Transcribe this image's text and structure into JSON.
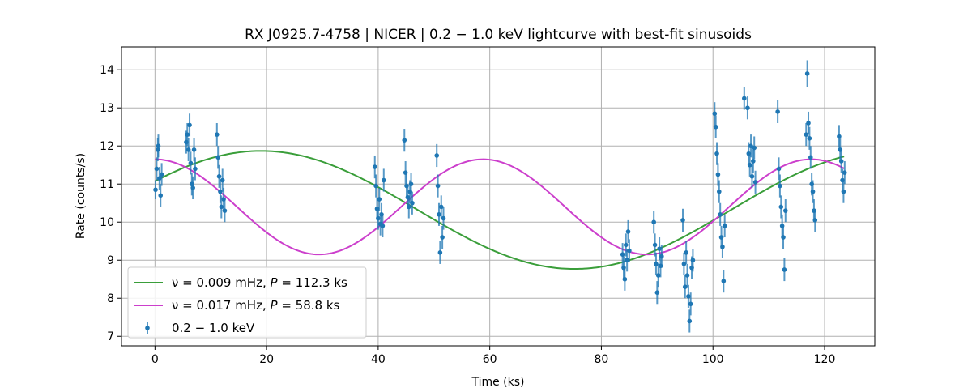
{
  "chart_data": {
    "type": "scatter",
    "title": "RX J0925.7-4758 | NICER | 0.2 − 1.0 keV lightcurve with best-fit sinusoids",
    "xlabel": "Time (ks)",
    "ylabel": "Rate (counts/s)",
    "xlim": [
      -6,
      129
    ],
    "ylim": [
      6.75,
      14.6
    ],
    "xticks": [
      0,
      20,
      40,
      60,
      80,
      100,
      120
    ],
    "yticks": [
      7,
      8,
      9,
      10,
      11,
      12,
      13,
      14
    ],
    "grid": true,
    "legend_position": "lower-left",
    "legend": [
      {
        "label_prefix": "ν = 0.009 mHz, ",
        "label_italic": "P",
        "label_suffix": " = 112.3 ks",
        "color": "#3a9e3a",
        "kind": "line"
      },
      {
        "label_prefix": "ν = 0.017 mHz, ",
        "label_italic": "P",
        "label_suffix": " = 58.8 ks",
        "color": "#cc3fcc",
        "kind": "line"
      },
      {
        "label_prefix": "0.2 − 1.0 keV",
        "label_italic": "",
        "label_suffix": "",
        "color": "#1f77b4",
        "kind": "errorbar"
      }
    ],
    "models": [
      {
        "name": "ν = 0.009 mHz, P = 112.3 ks",
        "color": "#3a9e3a",
        "mean": 10.32,
        "amplitude": 1.55,
        "period": 112.3,
        "peak_time": 19.0,
        "x_range": [
          0,
          123.5
        ]
      },
      {
        "name": "ν = 0.017 mHz, P = 58.8 ks",
        "color": "#cc3fcc",
        "mean": 10.4,
        "amplitude": 1.25,
        "period": 58.8,
        "peak_time": 58.8,
        "x_range": [
          0,
          123.5
        ]
      }
    ],
    "series": [
      {
        "name": "0.2 − 1.0 keV",
        "color": "#1f77b4",
        "points": [
          [
            0.1,
            10.85,
            0.25
          ],
          [
            0.3,
            11.4,
            0.3
          ],
          [
            0.5,
            11.9,
            0.3
          ],
          [
            0.6,
            12.0,
            0.3
          ],
          [
            0.8,
            11.15,
            0.3
          ],
          [
            1.0,
            10.7,
            0.3
          ],
          [
            1.2,
            11.25,
            0.3
          ],
          [
            5.6,
            12.1,
            0.3
          ],
          [
            5.8,
            12.3,
            0.3
          ],
          [
            6.0,
            11.9,
            0.3
          ],
          [
            6.2,
            12.55,
            0.3
          ],
          [
            6.4,
            11.55,
            0.3
          ],
          [
            6.6,
            11.0,
            0.3
          ],
          [
            6.8,
            10.9,
            0.3
          ],
          [
            7.0,
            11.9,
            0.3
          ],
          [
            7.2,
            11.4,
            0.3
          ],
          [
            11.1,
            12.3,
            0.3
          ],
          [
            11.3,
            11.7,
            0.3
          ],
          [
            11.5,
            11.2,
            0.3
          ],
          [
            11.7,
            10.8,
            0.3
          ],
          [
            11.9,
            10.4,
            0.3
          ],
          [
            12.1,
            11.1,
            0.3
          ],
          [
            12.3,
            10.6,
            0.3
          ],
          [
            12.5,
            10.3,
            0.3
          ],
          [
            39.4,
            11.45,
            0.3
          ],
          [
            39.6,
            10.95,
            0.3
          ],
          [
            39.8,
            10.35,
            0.3
          ],
          [
            40.0,
            10.1,
            0.3
          ],
          [
            40.2,
            10.6,
            0.3
          ],
          [
            40.4,
            9.95,
            0.3
          ],
          [
            40.6,
            10.2,
            0.3
          ],
          [
            40.8,
            9.9,
            0.3
          ],
          [
            41.0,
            11.1,
            0.3
          ],
          [
            44.7,
            12.15,
            0.3
          ],
          [
            44.9,
            11.3,
            0.3
          ],
          [
            45.1,
            10.95,
            0.3
          ],
          [
            45.3,
            10.65,
            0.3
          ],
          [
            45.5,
            10.4,
            0.3
          ],
          [
            45.7,
            10.8,
            0.3
          ],
          [
            45.9,
            11.0,
            0.3
          ],
          [
            46.1,
            10.5,
            0.3
          ],
          [
            50.5,
            11.75,
            0.3
          ],
          [
            50.7,
            10.95,
            0.3
          ],
          [
            50.9,
            10.2,
            0.3
          ],
          [
            51.1,
            9.2,
            0.3
          ],
          [
            51.3,
            10.4,
            0.3
          ],
          [
            51.5,
            9.6,
            0.3
          ],
          [
            51.7,
            10.1,
            0.3
          ],
          [
            83.8,
            9.15,
            0.3
          ],
          [
            84.0,
            8.8,
            0.3
          ],
          [
            84.2,
            8.5,
            0.3
          ],
          [
            84.4,
            9.4,
            0.3
          ],
          [
            84.6,
            9.0,
            0.3
          ],
          [
            84.8,
            9.75,
            0.3
          ],
          [
            85.0,
            9.25,
            0.3
          ],
          [
            89.4,
            10.0,
            0.3
          ],
          [
            89.6,
            9.4,
            0.3
          ],
          [
            89.8,
            8.9,
            0.3
          ],
          [
            90.0,
            8.15,
            0.3
          ],
          [
            90.2,
            8.6,
            0.3
          ],
          [
            90.4,
            9.3,
            0.3
          ],
          [
            90.6,
            8.85,
            0.3
          ],
          [
            90.8,
            9.1,
            0.3
          ],
          [
            94.8,
            8.9,
            0.3
          ],
          [
            95.0,
            8.3,
            0.3
          ],
          [
            95.2,
            9.2,
            0.3
          ],
          [
            95.4,
            8.6,
            0.3
          ],
          [
            95.6,
            8.05,
            0.3
          ],
          [
            95.8,
            7.4,
            0.3
          ],
          [
            96.0,
            7.85,
            0.3
          ],
          [
            96.2,
            8.8,
            0.3
          ],
          [
            96.4,
            9.0,
            0.3
          ],
          [
            94.6,
            10.05,
            0.3
          ],
          [
            100.3,
            12.85,
            0.3
          ],
          [
            100.5,
            12.5,
            0.3
          ],
          [
            100.7,
            11.8,
            0.3
          ],
          [
            100.9,
            11.25,
            0.3
          ],
          [
            101.1,
            10.8,
            0.3
          ],
          [
            101.3,
            10.2,
            0.3
          ],
          [
            101.5,
            9.6,
            0.3
          ],
          [
            101.7,
            9.35,
            0.3
          ],
          [
            101.9,
            8.45,
            0.3
          ],
          [
            102.1,
            9.9,
            0.3
          ],
          [
            105.6,
            13.25,
            0.3
          ],
          [
            106.2,
            13.0,
            0.3
          ],
          [
            106.4,
            11.8,
            0.3
          ],
          [
            106.6,
            11.5,
            0.3
          ],
          [
            106.8,
            12.0,
            0.3
          ],
          [
            107.0,
            11.2,
            0.3
          ],
          [
            107.2,
            11.6,
            0.3
          ],
          [
            107.4,
            11.95,
            0.3
          ],
          [
            107.6,
            11.05,
            0.3
          ],
          [
            111.6,
            12.9,
            0.3
          ],
          [
            111.8,
            11.4,
            0.3
          ],
          [
            112.0,
            10.95,
            0.3
          ],
          [
            112.2,
            10.4,
            0.3
          ],
          [
            112.4,
            9.9,
            0.3
          ],
          [
            112.6,
            9.6,
            0.3
          ],
          [
            112.8,
            8.75,
            0.3
          ],
          [
            113.0,
            10.3,
            0.3
          ],
          [
            116.9,
            13.9,
            0.35
          ],
          [
            117.1,
            12.6,
            0.3
          ],
          [
            117.3,
            12.2,
            0.3
          ],
          [
            117.5,
            11.7,
            0.3
          ],
          [
            117.7,
            11.0,
            0.3
          ],
          [
            117.9,
            10.8,
            0.3
          ],
          [
            118.1,
            10.3,
            0.3
          ],
          [
            118.3,
            10.05,
            0.3
          ],
          [
            116.7,
            12.3,
            0.3
          ],
          [
            122.6,
            12.25,
            0.3
          ],
          [
            122.8,
            11.9,
            0.3
          ],
          [
            123.0,
            11.6,
            0.3
          ],
          [
            123.2,
            11.1,
            0.3
          ],
          [
            123.4,
            10.8,
            0.3
          ],
          [
            123.6,
            11.3,
            0.3
          ]
        ]
      }
    ]
  }
}
